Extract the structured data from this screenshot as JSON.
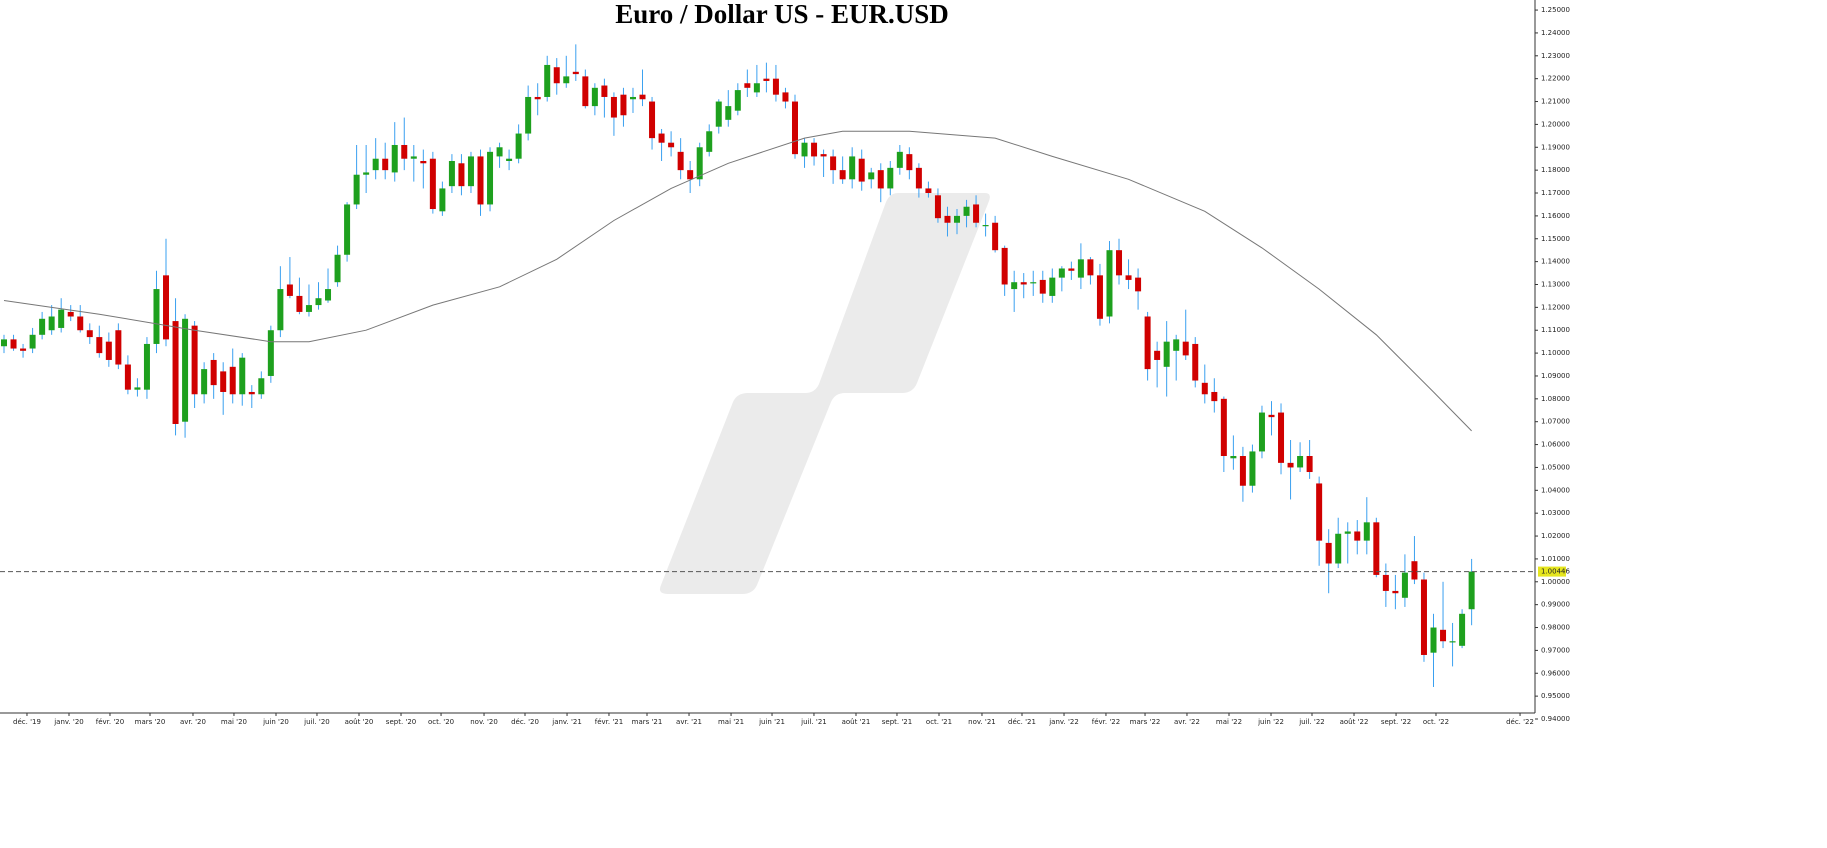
{
  "chart_data": {
    "type": "candlestick",
    "title": "Euro / Dollar US - EUR.USD",
    "up_color": "#1ea01e",
    "down_color": "#d00000",
    "wick_color": "#3aa0f0",
    "ma_color": "#777777",
    "grid": false,
    "xlim": [
      -0.42,
      160.65
    ],
    "ylim": [
      0.94,
      1.2544
    ],
    "yticks": [
      {
        "value": 0.94,
        "label": "0.94000"
      },
      {
        "value": 0.95,
        "label": "0.95000"
      },
      {
        "value": 0.96,
        "label": "0.96000"
      },
      {
        "value": 0.97,
        "label": "0.97000"
      },
      {
        "value": 0.98,
        "label": "0.98000"
      },
      {
        "value": 0.99,
        "label": "0.99000"
      },
      {
        "value": 1.0,
        "label": "1.00000"
      },
      {
        "value": 1.01,
        "label": "1.01000"
      },
      {
        "value": 1.02,
        "label": "1.02000"
      },
      {
        "value": 1.03,
        "label": "1.03000"
      },
      {
        "value": 1.04,
        "label": "1.04000"
      },
      {
        "value": 1.05,
        "label": "1.05000"
      },
      {
        "value": 1.06,
        "label": "1.06000"
      },
      {
        "value": 1.07,
        "label": "1.07000"
      },
      {
        "value": 1.08,
        "label": "1.08000"
      },
      {
        "value": 1.09,
        "label": "1.09000"
      },
      {
        "value": 1.1,
        "label": "1.10000"
      },
      {
        "value": 1.11,
        "label": "1.11000"
      },
      {
        "value": 1.12,
        "label": "1.12000"
      },
      {
        "value": 1.13,
        "label": "1.13000"
      },
      {
        "value": 1.14,
        "label": "1.14000"
      },
      {
        "value": 1.15,
        "label": "1.15000"
      },
      {
        "value": 1.16,
        "label": "1.16000"
      },
      {
        "value": 1.17,
        "label": "1.17000"
      },
      {
        "value": 1.18,
        "label": "1.18000"
      },
      {
        "value": 1.19,
        "label": "1.19000"
      },
      {
        "value": 1.2,
        "label": "1.20000"
      },
      {
        "value": 1.21,
        "label": "1.21000"
      },
      {
        "value": 1.22,
        "label": "1.22000"
      },
      {
        "value": 1.23,
        "label": "1.23000"
      },
      {
        "value": 1.24,
        "label": "1.24000"
      },
      {
        "value": 1.25,
        "label": "1.25000"
      }
    ],
    "xticks": [
      {
        "value": 2.41,
        "label": "déc. '19"
      },
      {
        "value": 6.82,
        "label": "janv. '20"
      },
      {
        "value": 11.12,
        "label": "févr. '20"
      },
      {
        "value": 15.32,
        "label": "mars '20"
      },
      {
        "value": 19.83,
        "label": "avr. '20"
      },
      {
        "value": 24.13,
        "label": "mai '20"
      },
      {
        "value": 28.54,
        "label": "juin '20"
      },
      {
        "value": 32.84,
        "label": "juil. '20"
      },
      {
        "value": 37.25,
        "label": "août '20"
      },
      {
        "value": 41.66,
        "label": "sept. '20"
      },
      {
        "value": 45.86,
        "label": "oct. '20"
      },
      {
        "value": 50.37,
        "label": "nov. '20"
      },
      {
        "value": 54.67,
        "label": "déc. '20"
      },
      {
        "value": 59.08,
        "label": "janv. '21"
      },
      {
        "value": 63.48,
        "label": "févr. '21"
      },
      {
        "value": 67.47,
        "label": "mars '21"
      },
      {
        "value": 71.88,
        "label": "avr. '21"
      },
      {
        "value": 76.29,
        "label": "mai '21"
      },
      {
        "value": 80.59,
        "label": "juin '21"
      },
      {
        "value": 84.99,
        "label": "juil. '21"
      },
      {
        "value": 89.4,
        "label": "août '21"
      },
      {
        "value": 93.7,
        "label": "sept. '21"
      },
      {
        "value": 98.11,
        "label": "oct. '21"
      },
      {
        "value": 102.62,
        "label": "nov. '21"
      },
      {
        "value": 106.82,
        "label": "déc. '21"
      },
      {
        "value": 111.23,
        "label": "janv. '22"
      },
      {
        "value": 115.63,
        "label": "févr. '22"
      },
      {
        "value": 119.73,
        "label": "mars '22"
      },
      {
        "value": 124.13,
        "label": "avr. '22"
      },
      {
        "value": 128.54,
        "label": "mai '22"
      },
      {
        "value": 132.95,
        "label": "juin '22"
      },
      {
        "value": 137.25,
        "label": "juil. '22"
      },
      {
        "value": 141.66,
        "label": "août '22"
      },
      {
        "value": 146.07,
        "label": "sept. '22"
      },
      {
        "value": 150.26,
        "label": "oct. '22"
      },
      {
        "value": 159.08,
        "label": "déc. '22"
      }
    ],
    "last_price": 1.00446,
    "candles": [
      [
        1.103,
        1.108,
        1.1,
        1.106
      ],
      [
        1.106,
        1.108,
        1.101,
        1.102
      ],
      [
        1.102,
        1.104,
        1.098,
        1.101
      ],
      [
        1.102,
        1.111,
        1.1,
        1.108
      ],
      [
        1.108,
        1.118,
        1.106,
        1.115
      ],
      [
        1.11,
        1.121,
        1.108,
        1.116
      ],
      [
        1.111,
        1.124,
        1.109,
        1.119
      ],
      [
        1.118,
        1.121,
        1.114,
        1.116
      ],
      [
        1.116,
        1.121,
        1.109,
        1.11
      ],
      [
        1.11,
        1.113,
        1.104,
        1.107
      ],
      [
        1.107,
        1.112,
        1.098,
        1.1
      ],
      [
        1.105,
        1.109,
        1.094,
        1.097
      ],
      [
        1.11,
        1.113,
        1.093,
        1.095
      ],
      [
        1.095,
        1.099,
        1.082,
        1.084
      ],
      [
        1.084,
        1.089,
        1.081,
        1.085
      ],
      [
        1.084,
        1.107,
        1.08,
        1.104
      ],
      [
        1.104,
        1.136,
        1.1,
        1.128
      ],
      [
        1.134,
        1.15,
        1.103,
        1.106
      ],
      [
        1.114,
        1.124,
        1.064,
        1.069
      ],
      [
        1.07,
        1.117,
        1.063,
        1.115
      ],
      [
        1.112,
        1.114,
        1.076,
        1.082
      ],
      [
        1.082,
        1.096,
        1.078,
        1.093
      ],
      [
        1.097,
        1.1,
        1.08,
        1.086
      ],
      [
        1.092,
        1.096,
        1.073,
        1.083
      ],
      [
        1.094,
        1.102,
        1.078,
        1.082
      ],
      [
        1.082,
        1.1,
        1.077,
        1.098
      ],
      [
        1.083,
        1.086,
        1.076,
        1.082
      ],
      [
        1.082,
        1.092,
        1.08,
        1.089
      ],
      [
        1.09,
        1.112,
        1.087,
        1.11
      ],
      [
        1.11,
        1.138,
        1.107,
        1.128
      ],
      [
        1.13,
        1.142,
        1.124,
        1.125
      ],
      [
        1.125,
        1.133,
        1.117,
        1.118
      ],
      [
        1.118,
        1.13,
        1.116,
        1.121
      ],
      [
        1.121,
        1.131,
        1.119,
        1.124
      ],
      [
        1.123,
        1.137,
        1.122,
        1.128
      ],
      [
        1.131,
        1.147,
        1.129,
        1.143
      ],
      [
        1.143,
        1.166,
        1.14,
        1.165
      ],
      [
        1.165,
        1.191,
        1.163,
        1.178
      ],
      [
        1.178,
        1.191,
        1.17,
        1.179
      ],
      [
        1.18,
        1.194,
        1.176,
        1.185
      ],
      [
        1.185,
        1.192,
        1.176,
        1.18
      ],
      [
        1.179,
        1.201,
        1.175,
        1.191
      ],
      [
        1.191,
        1.203,
        1.18,
        1.185
      ],
      [
        1.185,
        1.191,
        1.175,
        1.186
      ],
      [
        1.184,
        1.189,
        1.172,
        1.183
      ],
      [
        1.185,
        1.188,
        1.161,
        1.163
      ],
      [
        1.162,
        1.175,
        1.16,
        1.172
      ],
      [
        1.173,
        1.187,
        1.17,
        1.184
      ],
      [
        1.183,
        1.187,
        1.169,
        1.173
      ],
      [
        1.173,
        1.188,
        1.17,
        1.186
      ],
      [
        1.186,
        1.189,
        1.16,
        1.165
      ],
      [
        1.165,
        1.19,
        1.162,
        1.188
      ],
      [
        1.186,
        1.192,
        1.181,
        1.19
      ],
      [
        1.184,
        1.189,
        1.18,
        1.185
      ],
      [
        1.185,
        1.2,
        1.183,
        1.196
      ],
      [
        1.196,
        1.217,
        1.193,
        1.212
      ],
      [
        1.212,
        1.218,
        1.204,
        1.211
      ],
      [
        1.212,
        1.23,
        1.21,
        1.226
      ],
      [
        1.225,
        1.229,
        1.213,
        1.218
      ],
      [
        1.218,
        1.23,
        1.216,
        1.221
      ],
      [
        1.223,
        1.235,
        1.219,
        1.222
      ],
      [
        1.221,
        1.224,
        1.207,
        1.208
      ],
      [
        1.208,
        1.218,
        1.204,
        1.216
      ],
      [
        1.217,
        1.22,
        1.203,
        1.212
      ],
      [
        1.212,
        1.214,
        1.195,
        1.203
      ],
      [
        1.213,
        1.216,
        1.199,
        1.204
      ],
      [
        1.211,
        1.216,
        1.205,
        1.212
      ],
      [
        1.213,
        1.224,
        1.208,
        1.211
      ],
      [
        1.21,
        1.212,
        1.189,
        1.194
      ],
      [
        1.196,
        1.198,
        1.184,
        1.192
      ],
      [
        1.192,
        1.197,
        1.186,
        1.19
      ],
      [
        1.188,
        1.194,
        1.176,
        1.18
      ],
      [
        1.18,
        1.184,
        1.17,
        1.176
      ],
      [
        1.176,
        1.192,
        1.173,
        1.19
      ],
      [
        1.188,
        1.2,
        1.186,
        1.197
      ],
      [
        1.199,
        1.211,
        1.196,
        1.21
      ],
      [
        1.202,
        1.215,
        1.199,
        1.208
      ],
      [
        1.206,
        1.218,
        1.204,
        1.215
      ],
      [
        1.218,
        1.224,
        1.212,
        1.216
      ],
      [
        1.214,
        1.226,
        1.212,
        1.218
      ],
      [
        1.22,
        1.227,
        1.214,
        1.219
      ],
      [
        1.22,
        1.226,
        1.21,
        1.213
      ],
      [
        1.214,
        1.216,
        1.207,
        1.21
      ],
      [
        1.21,
        1.213,
        1.185,
        1.187
      ],
      [
        1.186,
        1.194,
        1.181,
        1.192
      ],
      [
        1.192,
        1.194,
        1.182,
        1.186
      ],
      [
        1.187,
        1.189,
        1.177,
        1.186
      ],
      [
        1.186,
        1.189,
        1.174,
        1.18
      ],
      [
        1.18,
        1.186,
        1.174,
        1.176
      ],
      [
        1.176,
        1.19,
        1.172,
        1.186
      ],
      [
        1.185,
        1.189,
        1.171,
        1.175
      ],
      [
        1.176,
        1.181,
        1.172,
        1.179
      ],
      [
        1.18,
        1.183,
        1.166,
        1.172
      ],
      [
        1.172,
        1.184,
        1.169,
        1.181
      ],
      [
        1.181,
        1.191,
        1.178,
        1.188
      ],
      [
        1.187,
        1.19,
        1.176,
        1.18
      ],
      [
        1.181,
        1.183,
        1.168,
        1.172
      ],
      [
        1.172,
        1.175,
        1.168,
        1.17
      ],
      [
        1.169,
        1.172,
        1.157,
        1.159
      ],
      [
        1.16,
        1.164,
        1.151,
        1.157
      ],
      [
        1.157,
        1.163,
        1.152,
        1.16
      ],
      [
        1.16,
        1.167,
        1.155,
        1.164
      ],
      [
        1.165,
        1.169,
        1.155,
        1.157
      ],
      [
        1.156,
        1.161,
        1.151,
        1.156
      ],
      [
        1.157,
        1.16,
        1.144,
        1.145
      ],
      [
        1.146,
        1.147,
        1.125,
        1.13
      ],
      [
        1.128,
        1.136,
        1.118,
        1.131
      ],
      [
        1.131,
        1.135,
        1.124,
        1.13
      ],
      [
        1.131,
        1.136,
        1.125,
        1.131
      ],
      [
        1.132,
        1.136,
        1.122,
        1.126
      ],
      [
        1.125,
        1.137,
        1.122,
        1.133
      ],
      [
        1.133,
        1.138,
        1.127,
        1.137
      ],
      [
        1.137,
        1.14,
        1.132,
        1.136
      ],
      [
        1.133,
        1.148,
        1.128,
        1.141
      ],
      [
        1.141,
        1.142,
        1.13,
        1.134
      ],
      [
        1.134,
        1.139,
        1.112,
        1.115
      ],
      [
        1.116,
        1.149,
        1.113,
        1.145
      ],
      [
        1.145,
        1.15,
        1.13,
        1.134
      ],
      [
        1.134,
        1.141,
        1.128,
        1.132
      ],
      [
        1.133,
        1.137,
        1.119,
        1.127
      ],
      [
        1.116,
        1.118,
        1.088,
        1.093
      ],
      [
        1.101,
        1.105,
        1.085,
        1.097
      ],
      [
        1.094,
        1.114,
        1.081,
        1.105
      ],
      [
        1.101,
        1.108,
        1.088,
        1.106
      ],
      [
        1.105,
        1.119,
        1.097,
        1.099
      ],
      [
        1.104,
        1.107,
        1.085,
        1.088
      ],
      [
        1.087,
        1.095,
        1.078,
        1.082
      ],
      [
        1.083,
        1.089,
        1.074,
        1.079
      ],
      [
        1.08,
        1.081,
        1.048,
        1.055
      ],
      [
        1.054,
        1.064,
        1.049,
        1.055
      ],
      [
        1.055,
        1.059,
        1.035,
        1.042
      ],
      [
        1.042,
        1.06,
        1.039,
        1.057
      ],
      [
        1.057,
        1.077,
        1.054,
        1.074
      ],
      [
        1.073,
        1.079,
        1.064,
        1.072
      ],
      [
        1.074,
        1.078,
        1.047,
        1.052
      ],
      [
        1.052,
        1.062,
        1.036,
        1.05
      ],
      [
        1.05,
        1.061,
        1.048,
        1.055
      ],
      [
        1.055,
        1.062,
        1.045,
        1.048
      ],
      [
        1.043,
        1.046,
        1.007,
        1.018
      ],
      [
        1.017,
        1.023,
        0.995,
        1.008
      ],
      [
        1.008,
        1.028,
        1.006,
        1.021
      ],
      [
        1.021,
        1.026,
        1.008,
        1.022
      ],
      [
        1.022,
        1.027,
        1.012,
        1.018
      ],
      [
        1.018,
        1.037,
        1.012,
        1.026
      ],
      [
        1.026,
        1.028,
        1.002,
        1.003
      ],
      [
        1.003,
        1.008,
        0.989,
        0.996
      ],
      [
        0.996,
        1.003,
        0.988,
        0.995
      ],
      [
        0.993,
        1.012,
        0.989,
        1.004
      ],
      [
        1.009,
        1.02,
        0.999,
        1.001
      ],
      [
        1.001,
        1.004,
        0.965,
        0.968
      ],
      [
        0.969,
        0.986,
        0.954,
        0.98
      ],
      [
        0.979,
        1.0,
        0.971,
        0.974
      ],
      [
        0.974,
        0.982,
        0.963,
        0.974
      ],
      [
        0.972,
        0.988,
        0.971,
        0.986
      ],
      [
        0.988,
        1.01,
        0.981,
        1.00446
      ]
    ],
    "moving_average": {
      "x": [
        0,
        10,
        20,
        28,
        32,
        38,
        45,
        52,
        58,
        64,
        70,
        76,
        84,
        88,
        95,
        104,
        110,
        118,
        126,
        132,
        138,
        144,
        150,
        154
      ],
      "values": [
        1.123,
        1.117,
        1.11,
        1.105,
        1.105,
        1.11,
        1.121,
        1.129,
        1.141,
        1.158,
        1.172,
        1.183,
        1.194,
        1.197,
        1.197,
        1.194,
        1.186,
        1.176,
        1.162,
        1.146,
        1.128,
        1.108,
        1.083,
        1.066
      ]
    }
  }
}
